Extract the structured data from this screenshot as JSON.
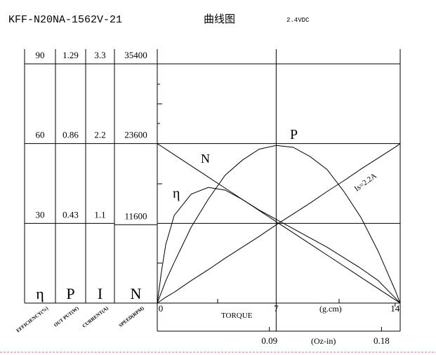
{
  "chart_data": {
    "type": "line",
    "title": "KFF-N20NA-1562V-21",
    "subtitle": "曲线图",
    "voltage": "2.4VDC",
    "xlabel": "TORQUE",
    "xunit": "(g.cm)",
    "x2unit": "(Oz-in)",
    "xlim": [
      0,
      14.3
    ],
    "xticks": [
      0,
      7,
      14
    ],
    "x2lim": [
      0,
      0.195
    ],
    "x2ticks": [
      0.09,
      0.18
    ],
    "color": "#000000",
    "axes": [
      {
        "symbol": "η",
        "label": "EFFICIENCY(%)",
        "ylim": [
          0,
          90
        ],
        "yticks": [
          30,
          60,
          90
        ]
      },
      {
        "symbol": "P",
        "label": "OUT PUT(W)",
        "ylim": [
          0,
          1.29
        ],
        "yticks": [
          0.43,
          0.86,
          1.29
        ]
      },
      {
        "symbol": "I",
        "label": "CURRENT(A)",
        "ylim": [
          0,
          3.3
        ],
        "yticks": [
          1.1,
          2.2,
          3.3
        ]
      },
      {
        "symbol": "N",
        "label": "SPEED(RPM)",
        "ylim": [
          0,
          35400
        ],
        "yticks": [
          11600,
          23600,
          35400
        ]
      }
    ],
    "x": [
      0,
      0.25,
      0.5,
      1,
      2,
      3,
      4,
      5,
      6,
      7,
      8,
      9,
      10,
      11,
      12,
      13,
      14,
      14.3
    ],
    "series": [
      {
        "name": "η",
        "axis": 0,
        "values": [
          0,
          12,
          22,
          33,
          41,
          43.5,
          42.5,
          39,
          35,
          31.5,
          28,
          24.5,
          21,
          17,
          13,
          8.5,
          2,
          0
        ]
      },
      {
        "name": "P",
        "axis": 1,
        "values": [
          0,
          0.06,
          0.12,
          0.22,
          0.41,
          0.56,
          0.69,
          0.77,
          0.83,
          0.85,
          0.84,
          0.79,
          0.72,
          0.6,
          0.46,
          0.28,
          0.07,
          0
        ]
      },
      {
        "name": "N",
        "axis": 3,
        "values": [
          23600,
          23190,
          22780,
          21950,
          20300,
          18650,
          17000,
          15350,
          13700,
          12050,
          10400,
          8750,
          7100,
          5450,
          3800,
          2150,
          500,
          0
        ]
      },
      {
        "name": "Is=2.2A",
        "axis": 2,
        "values": [
          0,
          0.04,
          0.08,
          0.15,
          0.31,
          0.46,
          0.62,
          0.77,
          0.92,
          1.08,
          1.23,
          1.38,
          1.54,
          1.69,
          1.85,
          2,
          2.15,
          2.2
        ]
      }
    ]
  }
}
